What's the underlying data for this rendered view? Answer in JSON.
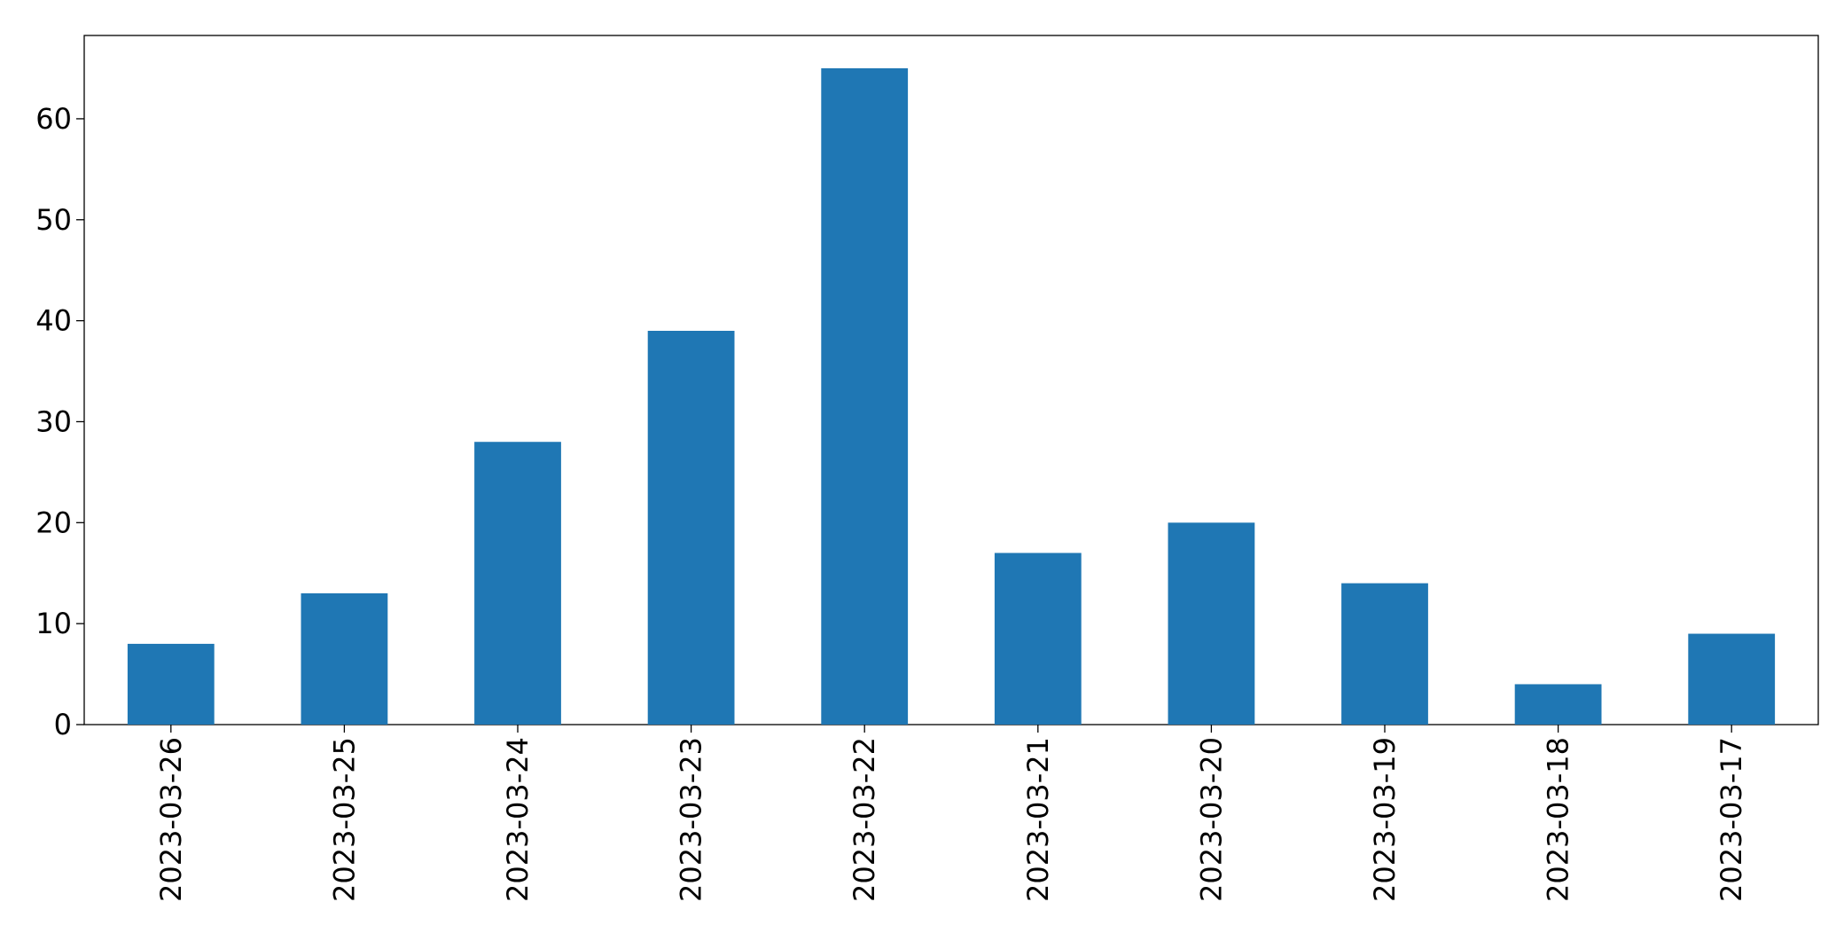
{
  "chart_data": {
    "type": "bar",
    "categories": [
      "2023-03-26",
      "2023-03-25",
      "2023-03-24",
      "2023-03-23",
      "2023-03-22",
      "2023-03-21",
      "2023-03-20",
      "2023-03-19",
      "2023-03-18",
      "2023-03-17"
    ],
    "values": [
      8,
      13,
      28,
      39,
      65,
      17,
      20,
      14,
      4,
      9
    ],
    "color": "#1f77b4",
    "ylim": [
      0,
      68.25
    ],
    "yticks": [
      0,
      10,
      20,
      30,
      40,
      50,
      60
    ],
    "grid": false
  }
}
